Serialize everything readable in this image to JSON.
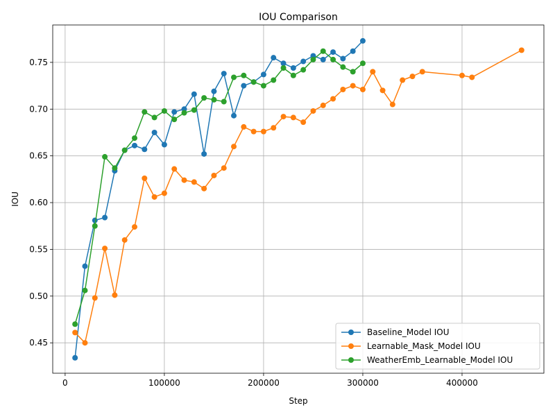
{
  "chart_data": {
    "type": "line",
    "title": "IOU Comparison",
    "xlabel": "Step",
    "ylabel": "IOU",
    "xlim": [
      -12500,
      482500
    ],
    "ylim": [
      0.4175,
      0.79
    ],
    "xticks": [
      0,
      100000,
      200000,
      300000,
      400000
    ],
    "yticks": [
      0.45,
      0.5,
      0.55,
      0.6,
      0.65,
      0.7,
      0.75
    ],
    "xtick_labels": [
      "0",
      "100000",
      "200000",
      "300000",
      "400000"
    ],
    "ytick_labels": [
      "0.45",
      "0.50",
      "0.55",
      "0.60",
      "0.65",
      "0.70",
      "0.75"
    ],
    "grid": true,
    "legend_position": "bottom-right",
    "series": [
      {
        "name": "Baseline_Model IOU",
        "color": "#1f77b4",
        "x": [
          10000,
          20000,
          30000,
          40000,
          50000,
          60000,
          70000,
          80000,
          90000,
          100000,
          110000,
          120000,
          130000,
          140000,
          150000,
          160000,
          170000,
          180000,
          190000,
          200000,
          210000,
          220000,
          230000,
          240000,
          250000,
          260000,
          270000,
          280000,
          290000,
          300000
        ],
        "y": [
          0.434,
          0.532,
          0.581,
          0.584,
          0.634,
          0.656,
          0.661,
          0.657,
          0.675,
          0.662,
          0.697,
          0.7,
          0.716,
          0.652,
          0.719,
          0.738,
          0.693,
          0.725,
          0.729,
          0.737,
          0.755,
          0.749,
          0.744,
          0.751,
          0.757,
          0.753,
          0.761,
          0.754,
          0.762,
          0.773
        ]
      },
      {
        "name": "Learnable_Mask_Model IOU",
        "color": "#ff7f0e",
        "x": [
          10000,
          20000,
          30000,
          40000,
          50000,
          60000,
          70000,
          80000,
          90000,
          100000,
          110000,
          120000,
          130000,
          140000,
          150000,
          160000,
          170000,
          180000,
          190000,
          200000,
          210000,
          220000,
          230000,
          240000,
          250000,
          260000,
          270000,
          280000,
          290000,
          300000,
          310000,
          320000,
          330000,
          340000,
          350000,
          360000,
          400000,
          410000,
          460000
        ],
        "y": [
          0.461,
          0.45,
          0.498,
          0.551,
          0.501,
          0.56,
          0.574,
          0.626,
          0.606,
          0.61,
          0.636,
          0.624,
          0.622,
          0.615,
          0.629,
          0.637,
          0.66,
          0.681,
          0.676,
          0.676,
          0.68,
          0.692,
          0.691,
          0.686,
          0.698,
          0.704,
          0.711,
          0.721,
          0.725,
          0.721,
          0.74,
          0.72,
          0.705,
          0.731,
          0.735,
          0.74,
          0.736,
          0.734,
          0.763
        ]
      },
      {
        "name": "WeatherEmb_Learnable_Model IOU",
        "color": "#2ca02c",
        "x": [
          10000,
          20000,
          30000,
          40000,
          50000,
          60000,
          70000,
          80000,
          90000,
          100000,
          110000,
          120000,
          130000,
          140000,
          150000,
          160000,
          170000,
          180000,
          190000,
          200000,
          210000,
          220000,
          230000,
          240000,
          250000,
          260000,
          270000,
          280000,
          290000,
          300000
        ],
        "y": [
          0.47,
          0.506,
          0.575,
          0.649,
          0.637,
          0.656,
          0.669,
          0.697,
          0.691,
          0.698,
          0.689,
          0.696,
          0.699,
          0.712,
          0.71,
          0.708,
          0.734,
          0.736,
          0.729,
          0.725,
          0.731,
          0.744,
          0.736,
          0.742,
          0.753,
          0.762,
          0.753,
          0.745,
          0.74,
          0.749
        ]
      }
    ]
  }
}
